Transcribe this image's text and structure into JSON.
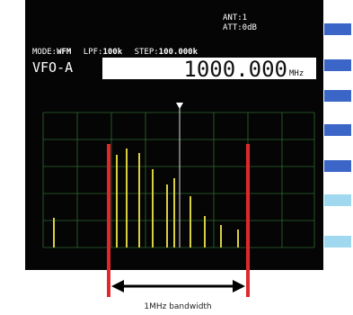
{
  "header": {
    "antenna": "ANT:1",
    "attenuator": "ATT:0dB"
  },
  "settings": {
    "mode_label": "MODE:",
    "mode": "WFM",
    "lpf_label": "LPF:",
    "lpf": "100k",
    "step_label": "STEP:",
    "step": "100.000k"
  },
  "vfo": "VFO-A",
  "frequency": "1000.000",
  "frequency_unit": "MHz",
  "annotation": "1MHz bandwidth"
}
